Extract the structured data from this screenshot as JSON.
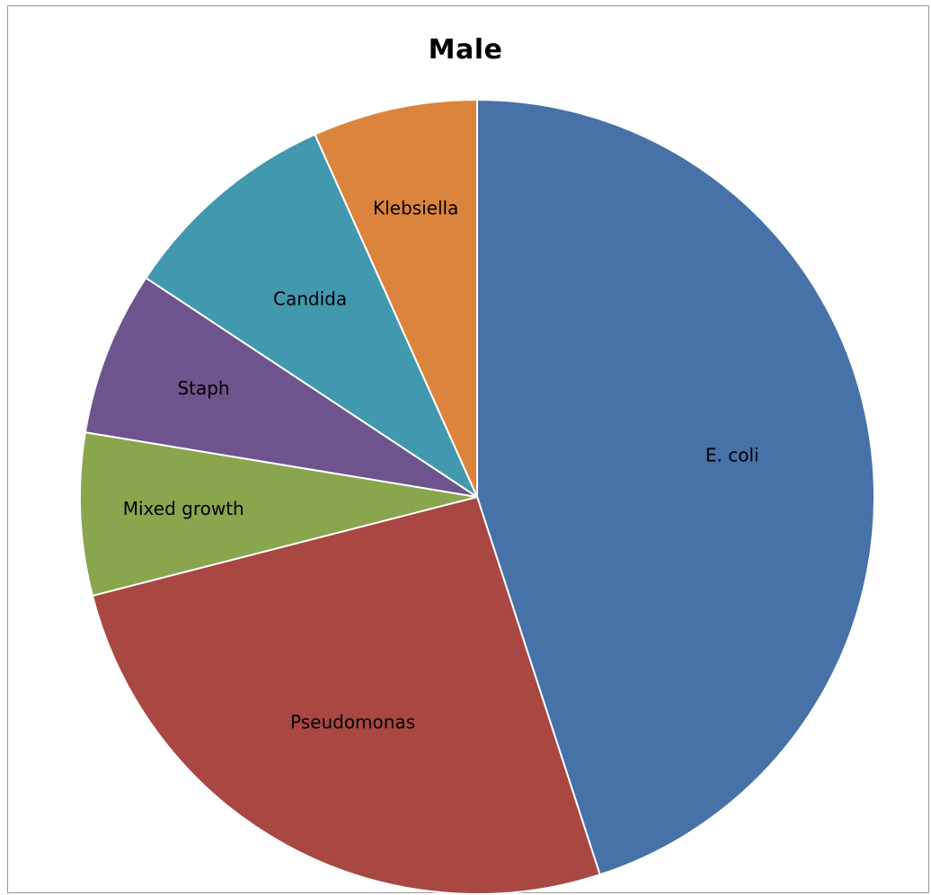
{
  "chart_data": {
    "type": "pie",
    "title": "Male",
    "categories": [
      "E. coli",
      "Pseudomonas",
      "Mixed growth",
      "Staph",
      "Candida",
      "Klebsiella"
    ],
    "values": [
      45.0,
      26.0,
      6.6,
      6.7,
      9.0,
      6.7
    ],
    "colors": [
      "#4672A8",
      "#A94743",
      "#89A54E",
      "#6E548D",
      "#4198AF",
      "#DB843D"
    ],
    "start_angle_deg": 0,
    "direction": "clockwise",
    "legend": "none",
    "labels_inside": true
  }
}
